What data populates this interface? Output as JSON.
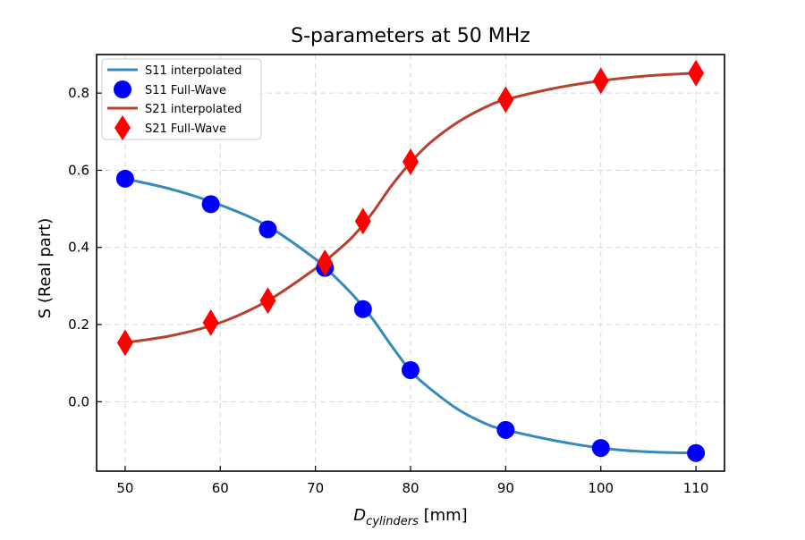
{
  "chart_data": {
    "type": "line",
    "title": "S-parameters at 50 MHz",
    "xlabel": {
      "main": "D",
      "subscript": "cylinders",
      "unit": " [mm]"
    },
    "ylabel": "S (Real part)",
    "xlim": [
      47,
      113
    ],
    "ylim": [
      -0.18,
      0.9
    ],
    "xticks": [
      50,
      60,
      70,
      80,
      90,
      100,
      110
    ],
    "yticks": [
      0.0,
      0.2,
      0.4,
      0.6,
      0.8
    ],
    "grid": true,
    "legend_position": "upper-left",
    "legend": [
      "S11 interpolated",
      "S11 Full-Wave",
      "S21 interpolated",
      "S21 Full-Wave"
    ],
    "series": [
      {
        "name": "S11 interpolated",
        "kind": "line",
        "color": "#348abd",
        "x": [
          50,
          55,
          60,
          65,
          70,
          72,
          74,
          76,
          78,
          80,
          82,
          85,
          88,
          90,
          95,
          100,
          105,
          110
        ],
        "y": [
          0.578,
          0.55,
          0.51,
          0.455,
          0.37,
          0.325,
          0.275,
          0.215,
          0.145,
          0.08,
          0.035,
          -0.02,
          -0.058,
          -0.073,
          -0.1,
          -0.12,
          -0.13,
          -0.133
        ]
      },
      {
        "name": "S11 Full-Wave",
        "kind": "markers",
        "marker": "circle",
        "color": "#0000ff",
        "x": [
          50,
          59,
          65,
          71,
          75,
          80,
          90,
          100,
          110
        ],
        "y": [
          0.578,
          0.512,
          0.447,
          0.347,
          0.24,
          0.082,
          -0.073,
          -0.12,
          -0.133
        ]
      },
      {
        "name": "S21 interpolated",
        "kind": "line",
        "color": "#b8412d",
        "x": [
          50,
          55,
          60,
          65,
          70,
          72,
          74,
          76,
          78,
          80,
          82,
          85,
          88,
          90,
          95,
          100,
          105,
          110
        ],
        "y": [
          0.153,
          0.172,
          0.205,
          0.262,
          0.345,
          0.385,
          0.43,
          0.49,
          0.56,
          0.62,
          0.67,
          0.725,
          0.765,
          0.783,
          0.812,
          0.832,
          0.845,
          0.852
        ]
      },
      {
        "name": "S21 Full-Wave",
        "kind": "markers",
        "marker": "diamond",
        "color": "#ff0000",
        "x": [
          50,
          59,
          65,
          71,
          75,
          80,
          90,
          100,
          110
        ],
        "y": [
          0.153,
          0.205,
          0.262,
          0.36,
          0.468,
          0.622,
          0.783,
          0.832,
          0.852
        ]
      }
    ]
  }
}
